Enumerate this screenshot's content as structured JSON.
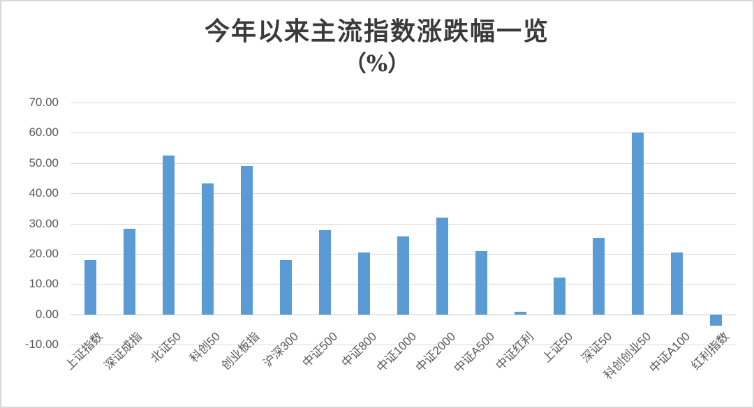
{
  "frame": {
    "background": "#ffffff",
    "border_color": "#d8d8d8"
  },
  "chart_data": {
    "type": "bar",
    "title": "今年以来主流指数涨跌幅一览",
    "subtitle": "（%）",
    "xlabel": "",
    "ylabel": "",
    "categories": [
      "上证指数",
      "深证成指",
      "北证50",
      "科创50",
      "创业板指",
      "沪深300",
      "中证500",
      "中证800",
      "中证1000",
      "中证2000",
      "中证A500",
      "中证红利",
      "上证50",
      "深证50",
      "科创创业50",
      "中证A100",
      "红利指数"
    ],
    "values": [
      17.8,
      28.3,
      52.5,
      43.2,
      49.0,
      17.9,
      27.8,
      20.4,
      25.8,
      31.9,
      21.0,
      0.9,
      12.2,
      25.2,
      60.0,
      20.5,
      -3.8
    ],
    "ylim": [
      -10,
      70
    ],
    "ytick_step": 10,
    "ytick_labels": [
      "70.00",
      "60.00",
      "50.00",
      "40.00",
      "30.00",
      "20.00",
      "10.00",
      "0.00",
      "-10.00"
    ],
    "grid": true,
    "legend_position": "none",
    "colors": {
      "bar": "#5B9BD5",
      "gridline": "#D9D9D9",
      "zero_axis": "#C6C6C6",
      "axis_text": "#595959",
      "title_text": "#3A3A3A"
    }
  }
}
